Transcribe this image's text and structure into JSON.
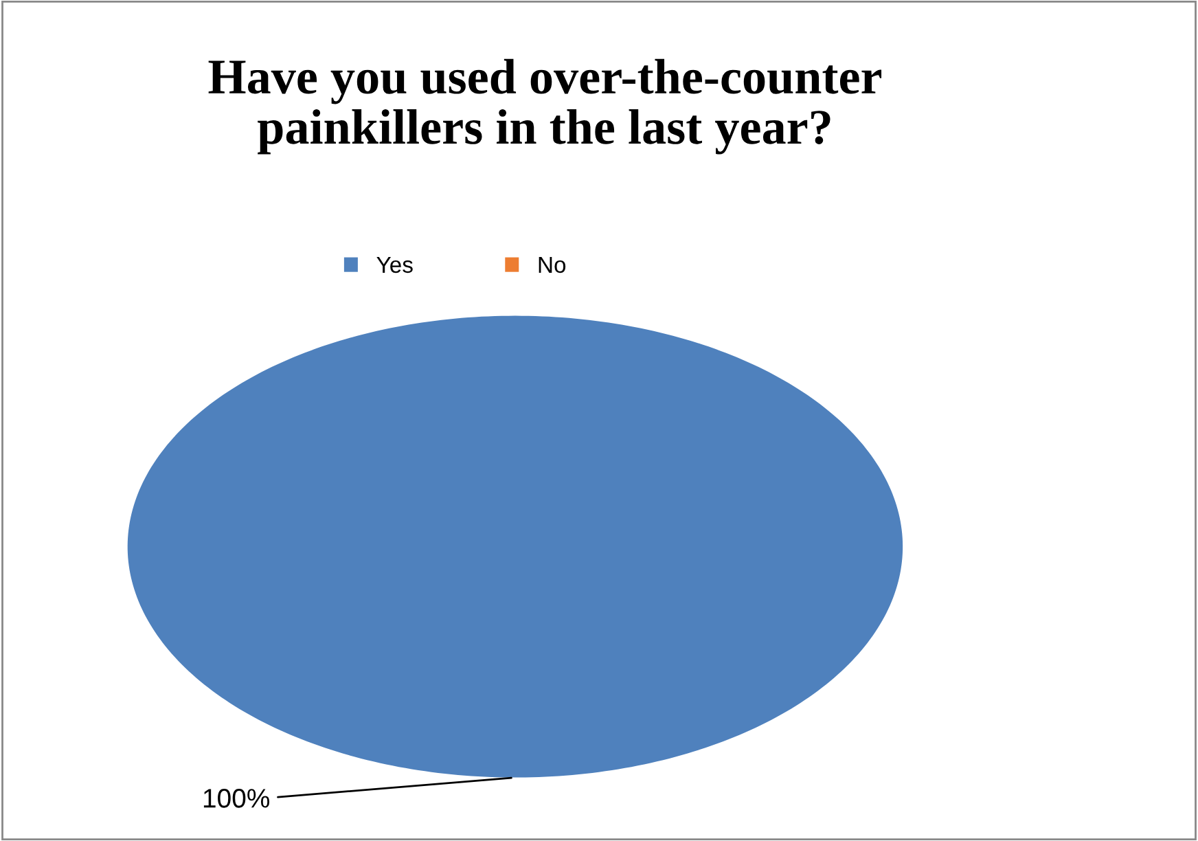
{
  "chart_data": {
    "type": "pie",
    "title": "Have you used over-the-counter\npainkillers in the last year?",
    "categories": [
      "Yes",
      "No"
    ],
    "values": [
      100,
      0
    ],
    "colors": [
      "#4f81bd",
      "#ed7d31"
    ],
    "value_labels": [
      "100%",
      null
    ],
    "legend": "top"
  }
}
